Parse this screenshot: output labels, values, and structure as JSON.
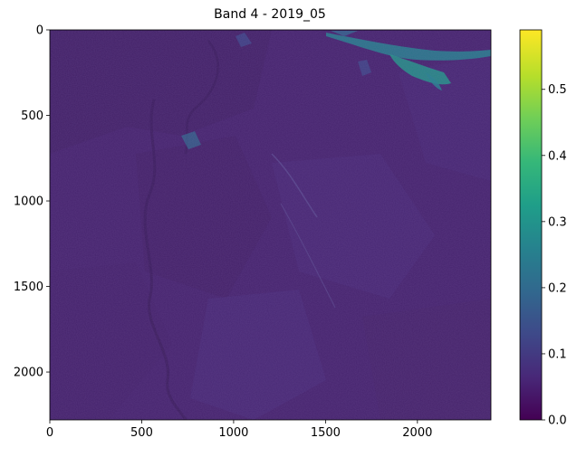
{
  "chart_data": {
    "type": "heatmap",
    "title": "Band 4 - 2019_05",
    "xlabel": "",
    "ylabel": "",
    "x_ticks": [
      0,
      500,
      1000,
      1500,
      2000
    ],
    "y_ticks": [
      0,
      500,
      1000,
      1500,
      2000
    ],
    "x_tick_labels": [
      "0",
      "500",
      "1000",
      "1500",
      "2000"
    ],
    "y_tick_labels": [
      "0",
      "500",
      "1000",
      "1500",
      "2000"
    ],
    "xlim": [
      0,
      2400
    ],
    "ylim": [
      2280,
      0
    ],
    "grid": false,
    "colormap": "viridis",
    "colorbar": {
      "vmin": 0.0,
      "vmax": 0.59,
      "ticks": [
        0.0,
        0.1,
        0.2,
        0.3,
        0.4,
        0.5
      ],
      "tick_labels": [
        "0.0",
        "0.1",
        "0.2",
        "0.3",
        "0.4",
        "0.5"
      ]
    },
    "typical_value": 0.08,
    "high_value_region": "water bodies along upper-right edge near x 1500-2400, y 0-300 with values up to about 0.35"
  },
  "colors": {
    "viridis_0": "#440154",
    "viridis_1": "#482878",
    "viridis_2": "#3e4989",
    "viridis_3": "#31688e",
    "viridis_4": "#26828e",
    "viridis_5": "#1f9e89",
    "viridis_6": "#35b779",
    "viridis_7": "#6ece58",
    "viridis_8": "#b5de2b",
    "viridis_9": "#fde725"
  }
}
